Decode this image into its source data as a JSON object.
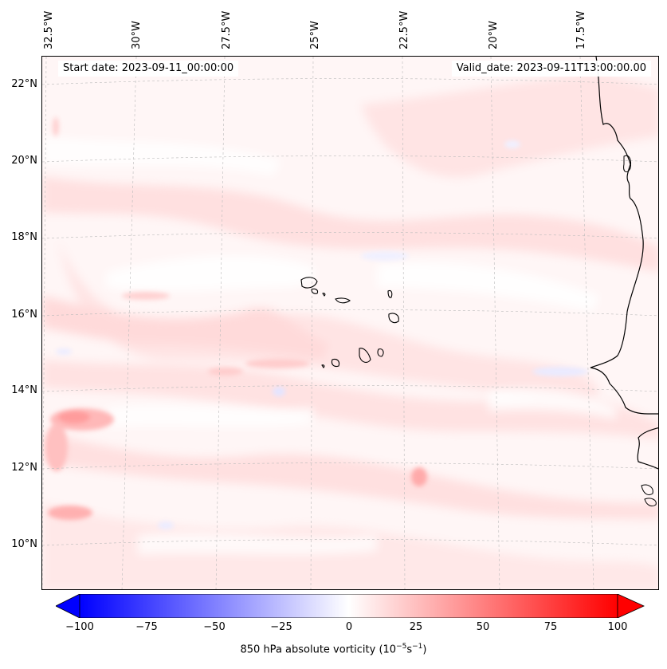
{
  "header": {
    "start_date": "Start date: 2023-09-11_00:00:00",
    "valid_date": "Valid_date: 2023-09-11T13:00:00.00"
  },
  "axes": {
    "lon_labels": [
      "32.5°W",
      "30°W",
      "27.5°W",
      "25°W",
      "22.5°W",
      "20°W",
      "17.5°W"
    ],
    "lat_labels": [
      "22°N",
      "20°N",
      "18°N",
      "16°N",
      "14°N",
      "12°N",
      "10°N"
    ],
    "grid": true
  },
  "colorbar": {
    "ticks": [
      "−100",
      "−75",
      "−50",
      "−25",
      "0",
      "25",
      "50",
      "75",
      "100"
    ],
    "label_main": "850 hPa absolute vorticity (10",
    "label_exp1": "−5",
    "label_mid": "s",
    "label_exp2": "−1",
    "label_end": ")",
    "min": -100,
    "max": 100,
    "colormap": "bwr",
    "extend": "both"
  },
  "colors": {
    "negative_end": "#0000ff",
    "neutral": "#ffffff",
    "positive_end": "#ff0000",
    "coastline": "#000000"
  }
}
